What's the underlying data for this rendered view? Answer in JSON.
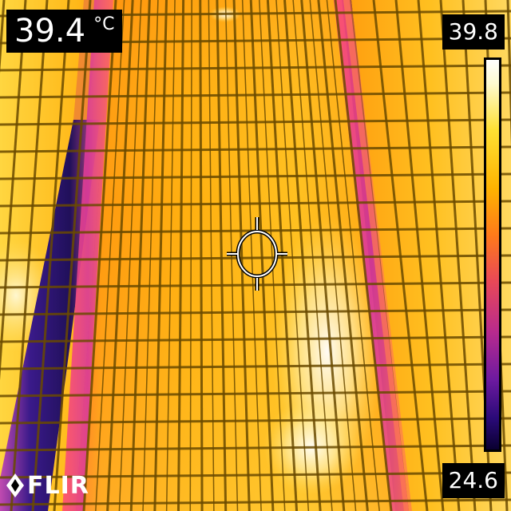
{
  "measurement": {
    "value": "39.4",
    "unit": "°C"
  },
  "scale": {
    "max": "39.8",
    "min": "24.6"
  },
  "logo": {
    "text": "FLIR"
  },
  "colors": {
    "label_bg": "#000000",
    "label_text": "#ffffff",
    "panel_yellow": "#ffd21a",
    "panel_orange": "#ff9a10",
    "frame_magenta": "#d94a9a",
    "cold_blue": "#3a1a8a"
  },
  "icons": [
    "spot-meter-crosshair-icon",
    "flir-logo-icon"
  ]
}
